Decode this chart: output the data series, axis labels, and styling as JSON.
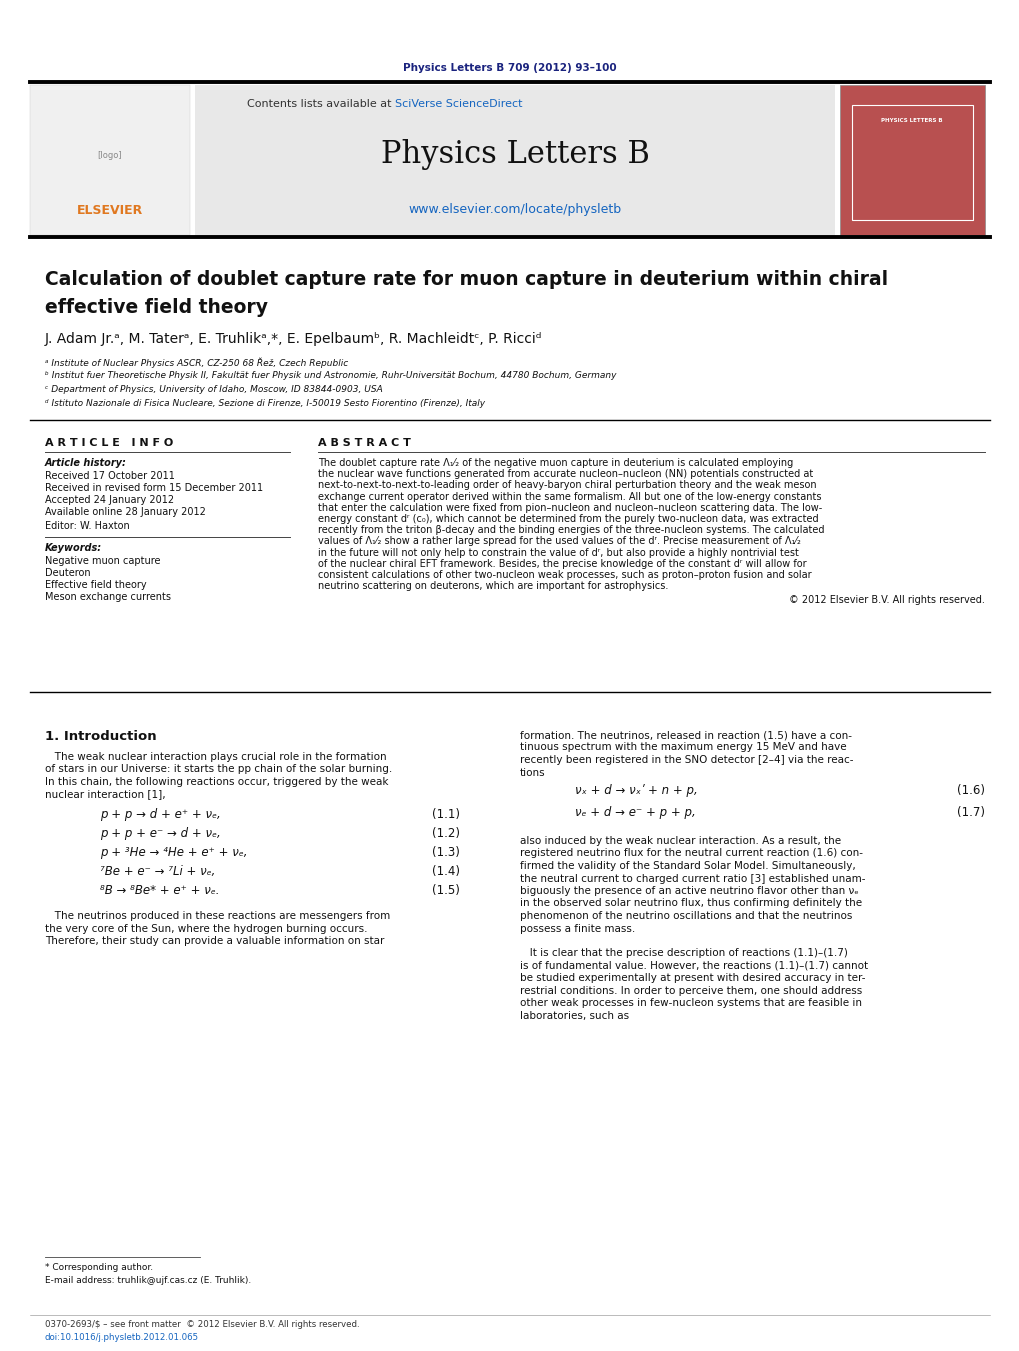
{
  "page_width": 10.2,
  "page_height": 13.51,
  "bg_color": "#ffffff",
  "journal_ref": "Physics Letters B 709 (2012) 93–100",
  "journal_ref_color": "#1a237e",
  "header_bg": "#e8e8e8",
  "header_title": "Physics Letters B",
  "contents_text": "Contents lists available at ",
  "sciverse_text": "SciVerse ScienceDirect",
  "sciverse_color": "#1565c0",
  "url_text": "www.elsevier.com/locate/physletb",
  "url_color": "#1565c0",
  "elsevier_color": "#e07820",
  "paper_title_line1": "Calculation of doublet capture rate for muon capture in deuterium within chiral",
  "paper_title_line2": "effective field theory",
  "authors": "J. Adam Jr.ᵃ, M. Taterᵃ, E. Truhlikᵃ,*, E. Epelbaumᵇ, R. Machleidtᶜ, P. Ricciᵈ",
  "affil_a": "ᵃ Institute of Nuclear Physics ASCR, CZ-250 68 Řež, Czech Republic",
  "affil_b": "ᵇ Institut fuer Theoretische Physik II, Fakultät fuer Physik und Astronomie, Ruhr-Universität Bochum, 44780 Bochum, Germany",
  "affil_c": "ᶜ Department of Physics, University of Idaho, Moscow, ID 83844-0903, USA",
  "affil_d": "ᵈ Istituto Nazionale di Fisica Nucleare, Sezione di Firenze, I-50019 Sesto Fiorentino (Firenze), Italy",
  "article_info_title": "A R T I C L E   I N F O",
  "article_history_title": "Article history:",
  "received": "Received 17 October 2011",
  "revised": "Received in revised form 15 December 2011",
  "accepted": "Accepted 24 January 2012",
  "available": "Available online 28 January 2012",
  "editor": "Editor: W. Haxton",
  "keywords_title": "Keywords:",
  "keywords": [
    "Negative muon capture",
    "Deuteron",
    "Effective field theory",
    "Meson exchange currents"
  ],
  "abstract_title": "A B S T R A C T",
  "abstract_text": "The doublet capture rate Λ₁⁄₂ of the negative muon capture in deuterium is calculated employing the nuclear wave functions generated from accurate nucleon–nucleon (NN) potentials constructed at next-to-next-to-next-to-leading order of heavy-baryon chiral perturbation theory and the weak meson exchange current operator derived within the same formalism. All but one of the low-energy constants that enter the calculation were fixed from pion–nucleon and nucleon–nucleon scattering data. The low-energy constant dʳ (c₀), which cannot be determined from the purely two-nucleon data, was extracted recently from the triton β-decay and the binding energies of the three-nucleon systems. The calculated values of Λ₁⁄₂ show a rather large spread for the used values of the dʳ. Precise measurement of Λ₁⁄₂ in the future will not only help to constrain the value of dʳ, but also provide a highly nontrivial test of the nuclear chiral EFT framework. Besides, the precise knowledge of the constant dʳ will allow for consistent calculations of other two-nucleon weak processes, such as proton–proton fusion and solar neutrino scattering on deuterons, which are important for astrophysics.",
  "abstract_lines": [
    "The doublet capture rate Λ₁⁄₂ of the negative muon capture in deuterium is calculated employing",
    "the nuclear wave functions generated from accurate nucleon–nucleon (NN) potentials constructed at",
    "next-to-next-to-next-to-leading order of heavy-baryon chiral perturbation theory and the weak meson",
    "exchange current operator derived within the same formalism. All but one of the low-energy constants",
    "that enter the calculation were fixed from pion–nucleon and nucleon–nucleon scattering data. The low-",
    "energy constant dʳ (c₀), which cannot be determined from the purely two-nucleon data, was extracted",
    "recently from the triton β-decay and the binding energies of the three-nucleon systems. The calculated",
    "values of Λ₁⁄₂ show a rather large spread for the used values of the dʳ. Precise measurement of Λ₁⁄₂",
    "in the future will not only help to constrain the value of dʳ, but also provide a highly nontrivial test",
    "of the nuclear chiral EFT framework. Besides, the precise knowledge of the constant dʳ will allow for",
    "consistent calculations of other two-nucleon weak processes, such as proton–proton fusion and solar",
    "neutrino scattering on deuterons, which are important for astrophysics."
  ],
  "copyright": "© 2012 Elsevier B.V. All rights reserved.",
  "intro_title": "1. Introduction",
  "intro_lines1": [
    "   The weak nuclear interaction plays crucial role in the formation",
    "of stars in our Universe: it starts the pp chain of the solar burning.",
    "In this chain, the following reactions occur, triggered by the weak",
    "nuclear interaction [1],"
  ],
  "eq11": "p + p → d + e⁺ + νₑ,",
  "eq12": "p + p + e⁻ → d + νₑ,",
  "eq13": "p + ³He → ⁴He + e⁺ + νₑ,",
  "eq14": "⁷Be + e⁻ → ⁷Li + νₑ,",
  "eq15": "⁸B → ⁸Be* + e⁺ + νₑ.",
  "eq_labels": [
    "(1.1)",
    "(1.2)",
    "(1.3)",
    "(1.4)",
    "(1.5)"
  ],
  "intro_lines2": [
    "   The neutrinos produced in these reactions are messengers from",
    "the very core of the Sun, where the hydrogen burning occurs.",
    "Therefore, their study can provide a valuable information on star"
  ],
  "right_lines1": [
    "formation. The neutrinos, released in reaction (1.5) have a con-",
    "tinuous spectrum with the maximum energy 15 MeV and have",
    "recently been registered in the SNO detector [2–4] via the reac-",
    "tions"
  ],
  "eq16": "νₓ + d → νₓʹ + n + p,",
  "eq17": "νₑ + d → e⁻ + p + p,",
  "eq_labels2": [
    "(1.6)",
    "(1.7)"
  ],
  "right_lines2": [
    "also induced by the weak nuclear interaction. As a result, the",
    "registered neutrino flux for the neutral current reaction (1.6) con-",
    "firmed the validity of the Standard Solar Model. Simultaneously,",
    "the neutral current to charged current ratio [3] established unam-",
    "biguously the presence of an active neutrino flavor other than νₑ",
    "in the observed solar neutrino flux, thus confirming definitely the",
    "phenomenon of the neutrino oscillations and that the neutrinos",
    "possess a finite mass."
  ],
  "right_lines3": [
    "   It is clear that the precise description of reactions (1.1)–(1.7)",
    "is of fundamental value. However, the reactions (1.1)–(1.7) cannot",
    "be studied experimentally at present with desired accuracy in ter-",
    "restrial conditions. In order to perceive them, one should address",
    "other weak processes in few-nucleon systems that are feasible in",
    "laboratories, such as"
  ],
  "footnote_star": "* Corresponding author.",
  "footnote_email": "E-mail address: truhlik@ujf.cas.cz (E. Truhlik).",
  "footer_left": "0370-2693/$ – see front matter  © 2012 Elsevier B.V. All rights reserved.",
  "footer_doi": "doi:10.1016/j.physletb.2012.01.065",
  "cover_color": "#b85050",
  "cover_label": "PHYSICS LETTERS B"
}
